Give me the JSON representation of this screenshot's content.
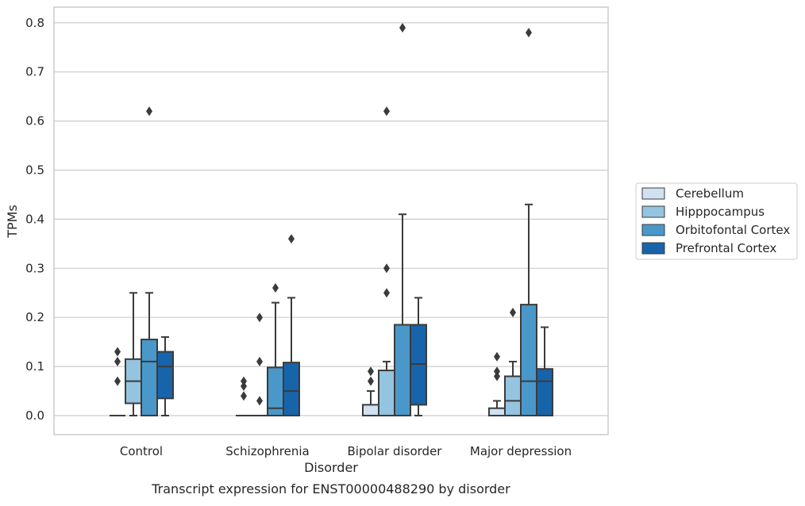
{
  "caption": "Transcript expression for ENST00000488290 by disorder",
  "chart_data": {
    "type": "box",
    "xlabel": "Disorder",
    "ylabel": "TPMs",
    "ylim": [
      -0.04,
      0.83
    ],
    "yticks": [
      0.0,
      0.1,
      0.2,
      0.3,
      0.4,
      0.5,
      0.6,
      0.7,
      0.8
    ],
    "ytick_labels": [
      "0.0",
      "0.1",
      "0.2",
      "0.3",
      "0.4",
      "0.5",
      "0.6",
      "0.7",
      "0.8"
    ],
    "grid": "horizontal",
    "legend_position": "right",
    "categories": [
      "Control",
      "Schizophrenia",
      "Bipolar disorder",
      "Major depression"
    ],
    "series": [
      {
        "name": "Cerebellum",
        "color": "#d0e1f2",
        "boxes": [
          {
            "q1": 0.0,
            "median": 0.0,
            "q3": 0.0,
            "whisker_low": 0.0,
            "whisker_high": 0.0,
            "outliers": [
              0.07,
              0.11,
              0.13
            ]
          },
          {
            "q1": 0.0,
            "median": 0.0,
            "q3": 0.0,
            "whisker_low": 0.0,
            "whisker_high": 0.0,
            "outliers": [
              0.04,
              0.06,
              0.07
            ]
          },
          {
            "q1": 0.0,
            "median": 0.0,
            "q3": 0.022,
            "whisker_low": 0.0,
            "whisker_high": 0.05,
            "outliers": [
              0.07,
              0.09
            ]
          },
          {
            "q1": 0.0,
            "median": 0.0,
            "q3": 0.015,
            "whisker_low": 0.0,
            "whisker_high": 0.03,
            "outliers": [
              0.08,
              0.09,
              0.12
            ]
          }
        ]
      },
      {
        "name": "Hipppocampus",
        "color": "#94c4df",
        "boxes": [
          {
            "q1": 0.025,
            "median": 0.07,
            "q3": 0.115,
            "whisker_low": 0.0,
            "whisker_high": 0.25,
            "outliers": []
          },
          {
            "q1": 0.0,
            "median": 0.0,
            "q3": 0.0,
            "whisker_low": 0.0,
            "whisker_high": 0.0,
            "outliers": [
              0.03,
              0.11,
              0.2
            ]
          },
          {
            "q1": 0.0,
            "median": 0.0,
            "q3": 0.092,
            "whisker_low": 0.0,
            "whisker_high": 0.11,
            "outliers": [
              0.25,
              0.3,
              0.62
            ]
          },
          {
            "q1": 0.0,
            "median": 0.03,
            "q3": 0.08,
            "whisker_low": 0.0,
            "whisker_high": 0.11,
            "outliers": [
              0.21
            ]
          }
        ]
      },
      {
        "name": "Orbitofontal Cortex",
        "color": "#4a98c9",
        "boxes": [
          {
            "q1": 0.0,
            "median": 0.11,
            "q3": 0.155,
            "whisker_low": 0.0,
            "whisker_high": 0.25,
            "outliers": [
              0.62
            ]
          },
          {
            "q1": 0.0,
            "median": 0.015,
            "q3": 0.098,
            "whisker_low": 0.0,
            "whisker_high": 0.23,
            "outliers": [
              0.26
            ]
          },
          {
            "q1": 0.0,
            "median": 0.0,
            "q3": 0.185,
            "whisker_low": 0.0,
            "whisker_high": 0.41,
            "outliers": [
              0.79
            ]
          },
          {
            "q1": 0.0,
            "median": 0.07,
            "q3": 0.226,
            "whisker_low": 0.0,
            "whisker_high": 0.43,
            "outliers": [
              0.78
            ]
          }
        ]
      },
      {
        "name": "Prefrontal Cortex",
        "color": "#1764ab",
        "boxes": [
          {
            "q1": 0.035,
            "median": 0.1,
            "q3": 0.13,
            "whisker_low": 0.0,
            "whisker_high": 0.16,
            "outliers": []
          },
          {
            "q1": 0.0,
            "median": 0.05,
            "q3": 0.108,
            "whisker_low": 0.0,
            "whisker_high": 0.24,
            "outliers": [
              0.36
            ]
          },
          {
            "q1": 0.022,
            "median": 0.105,
            "q3": 0.185,
            "whisker_low": 0.0,
            "whisker_high": 0.24,
            "outliers": []
          },
          {
            "q1": 0.0,
            "median": 0.07,
            "q3": 0.095,
            "whisker_low": 0.0,
            "whisker_high": 0.18,
            "outliers": []
          }
        ]
      }
    ]
  }
}
